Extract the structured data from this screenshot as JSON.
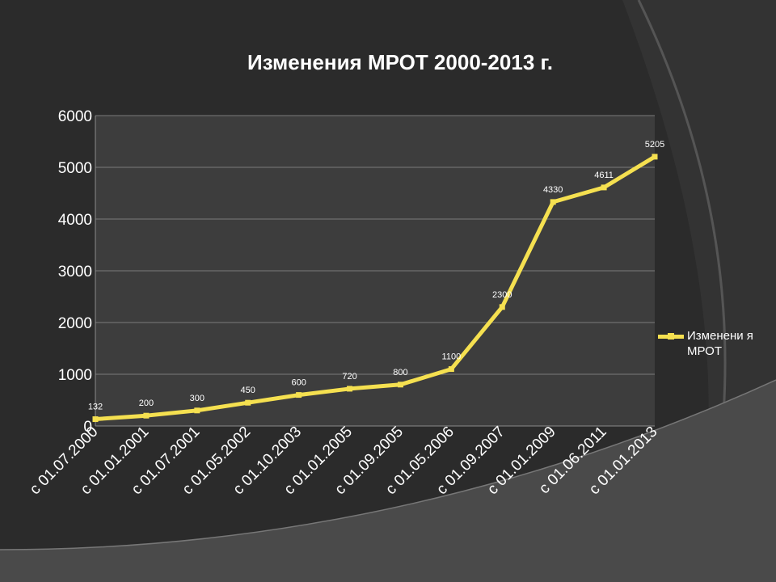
{
  "chart_data": {
    "type": "line",
    "title": "Изменения МРОТ 2000-2013 г.",
    "categories": [
      "с 01.07.2000",
      "с 01.01.2001",
      "с 01.07.2001",
      "с 01.05.2002",
      "с 01.10.2003",
      "с 01.01.2005",
      "с 01.09.2005",
      "с 01.05.2006",
      "с 01.09.2007",
      "с 01.01.2009",
      "с 01.06.2011",
      "с 01.01.2013"
    ],
    "series": [
      {
        "name": "Изменения МРОТ",
        "values": [
          132,
          200,
          300,
          450,
          600,
          720,
          800,
          1100,
          2300,
          4330,
          4611,
          5205
        ],
        "color": "#f5e050"
      }
    ],
    "data_labels": [
      "132",
      "200",
      "300",
      "450",
      "600",
      "720",
      "800",
      "1100",
      "2300",
      "4330",
      "4611",
      "5205"
    ],
    "yticks": [
      "0",
      "1000",
      "2000",
      "3000",
      "4000",
      "5000",
      "6000"
    ],
    "ylim": [
      0,
      6000
    ],
    "grid": true,
    "legend_position": "right",
    "legend_label": "Изменени я МРОТ",
    "xlabel": "",
    "ylabel": ""
  },
  "colors": {
    "background": "#2b2b2b",
    "plot_area": "#3d3d3d",
    "line": "#f5e050",
    "grid": "#7a7a7a",
    "text": "#ffffff"
  }
}
